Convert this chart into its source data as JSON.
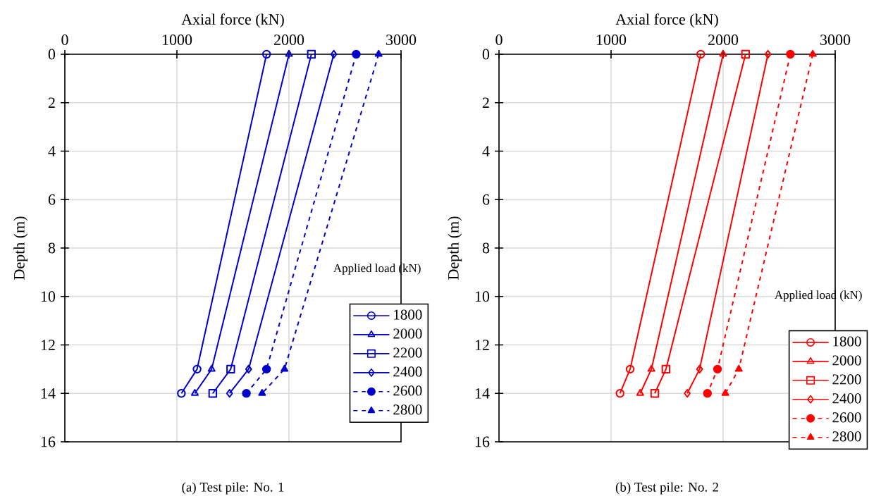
{
  "chart_data": [
    {
      "type": "line",
      "title": "(a) Test pile: No. 1",
      "xlabel": "Axial force (kN)",
      "ylabel": "Depth (m)",
      "legend_title": "Applied load (kN)",
      "xlim": [
        0,
        3000
      ],
      "xticks": [
        0,
        1000,
        2000,
        3000
      ],
      "ylim": [
        16,
        0
      ],
      "yticks": [
        0,
        2,
        4,
        6,
        8,
        10,
        12,
        14,
        16
      ],
      "grid": true,
      "legend": "bottom right",
      "series": [
        {
          "name": "1800",
          "color": "#0000cc",
          "marker": "circle",
          "line_style": "solid",
          "x": [
            1800,
            1180,
            1040
          ],
          "values": [
            0,
            13,
            14
          ]
        },
        {
          "name": "2000",
          "color": "#0000cc",
          "marker": "triangle",
          "line_style": "solid",
          "x": [
            2000,
            1310,
            1160
          ],
          "values": [
            0,
            13,
            14
          ]
        },
        {
          "name": "2200",
          "color": "#0000cc",
          "marker": "square",
          "line_style": "solid",
          "x": [
            2200,
            1480,
            1320
          ],
          "values": [
            0,
            13,
            14
          ]
        },
        {
          "name": "2400",
          "color": "#0000cc",
          "marker": "diamond",
          "line_style": "solid",
          "x": [
            2400,
            1640,
            1470
          ],
          "values": [
            0,
            13,
            14
          ]
        },
        {
          "name": "2600",
          "color": "#0000cc",
          "marker": "circle",
          "line_style": "dashed",
          "x": [
            2600,
            1800,
            1620
          ],
          "values": [
            0,
            13,
            14
          ]
        },
        {
          "name": "2800",
          "color": "#0000cc",
          "marker": "triangle",
          "line_style": "dashed",
          "x": [
            2800,
            1960,
            1760
          ],
          "values": [
            0,
            13,
            14
          ]
        }
      ]
    },
    {
      "type": "line",
      "title": "(b) Test pile: No. 2",
      "xlabel": "Axial force (kN)",
      "ylabel": "Depth (m)",
      "legend_title": "Applied load (kN)",
      "xlim": [
        0,
        3000
      ],
      "xticks": [
        0,
        1000,
        2000,
        3000
      ],
      "ylim": [
        16,
        0
      ],
      "yticks": [
        0,
        2,
        4,
        6,
        8,
        10,
        12,
        14,
        16
      ],
      "grid": true,
      "legend": "bottom right",
      "series": [
        {
          "name": "1800",
          "color": "#ff0000",
          "marker": "circle",
          "line_style": "solid",
          "x": [
            1800,
            1170,
            1080
          ],
          "values": [
            0,
            13,
            14
          ]
        },
        {
          "name": "2000",
          "color": "#ff0000",
          "marker": "triangle",
          "line_style": "solid",
          "x": [
            2000,
            1360,
            1260
          ],
          "values": [
            0,
            13,
            14
          ]
        },
        {
          "name": "2200",
          "color": "#ff0000",
          "marker": "square",
          "line_style": "solid",
          "x": [
            2200,
            1490,
            1390
          ],
          "values": [
            0,
            13,
            14
          ]
        },
        {
          "name": "2400",
          "color": "#ff0000",
          "marker": "diamond",
          "line_style": "solid",
          "x": [
            2400,
            1790,
            1680
          ],
          "values": [
            0,
            13,
            14
          ]
        },
        {
          "name": "2600",
          "color": "#ff0000",
          "marker": "circle",
          "line_style": "dashed",
          "x": [
            2600,
            1950,
            1860
          ],
          "values": [
            0,
            13,
            14
          ]
        },
        {
          "name": "2800",
          "color": "#ff0000",
          "marker": "triangle",
          "line_style": "dashed",
          "x": [
            2800,
            2140,
            2020
          ],
          "values": [
            0,
            13,
            14
          ]
        }
      ]
    }
  ]
}
